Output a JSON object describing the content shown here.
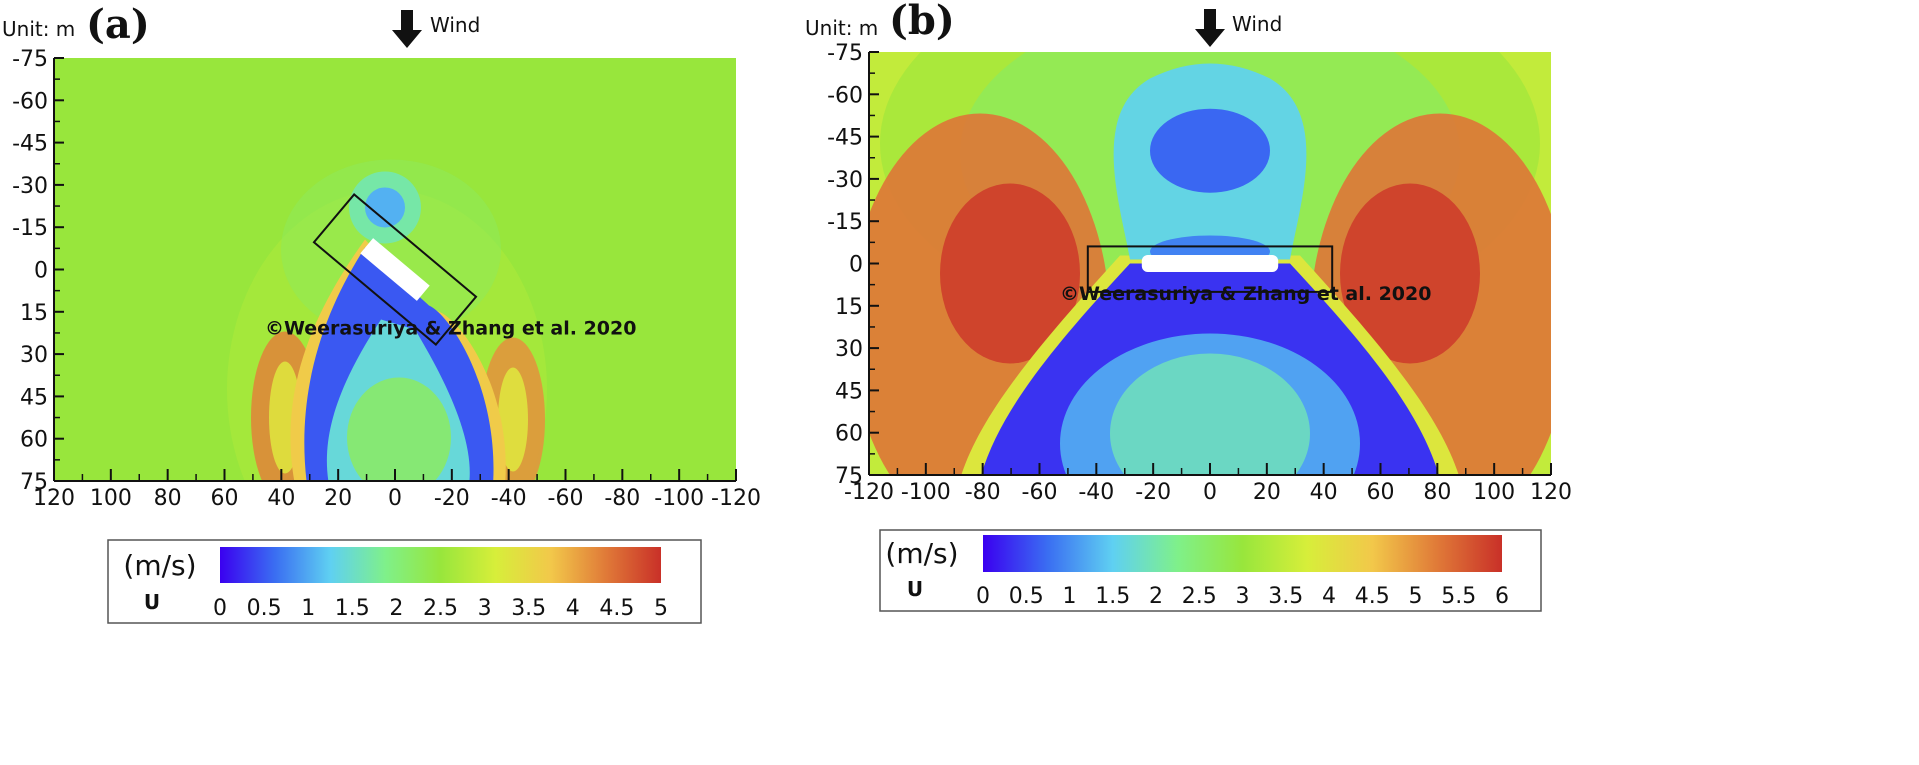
{
  "panels": [
    {
      "id": "a",
      "letter": "(a)",
      "unit_label": "Unit: m",
      "wind_label": "Wind",
      "watermark": "©Weerasuriya & Zhang et al. 2020",
      "chart_data": {
        "type": "heatmap",
        "field": "wind speed U (m/s)",
        "x_ticks": [
          "120",
          "100",
          "80",
          "60",
          "40",
          "20",
          "0",
          "-20",
          "-40",
          "-60",
          "-80",
          "-100",
          "-120"
        ],
        "y_ticks": [
          "-75",
          "-60",
          "-45",
          "-30",
          "-15",
          "0",
          "15",
          "30",
          "45",
          "60",
          "75"
        ],
        "xlim": [
          120,
          -120
        ],
        "ylim": [
          -75,
          75
        ],
        "y_inverted": true,
        "background_speed": 2.5,
        "structure": {
          "rotation_deg": 40,
          "center": [
            0,
            0
          ],
          "length": 26,
          "width": 7
        },
        "bounding_box": {
          "rotation_deg": 40,
          "center": [
            0,
            0
          ],
          "length": 56,
          "width": 22
        },
        "colorbar": {
          "title": "(m/s)",
          "variable": "U",
          "min": 0,
          "max": 5,
          "ticks": [
            "0",
            "0.5",
            "1",
            "1.5",
            "2",
            "2.5",
            "3",
            "3.5",
            "4",
            "4.5",
            "5"
          ]
        }
      }
    },
    {
      "id": "b",
      "letter": "(b)",
      "unit_label": "Unit: m",
      "wind_label": "Wind",
      "watermark": "©Weerasuriya & Zhang et al. 2020",
      "chart_data": {
        "type": "heatmap",
        "field": "wind speed U (m/s)",
        "x_ticks": [
          "-120",
          "-100",
          "-80",
          "-60",
          "-40",
          "-20",
          "0",
          "20",
          "40",
          "60",
          "80",
          "100",
          "120"
        ],
        "y_ticks": [
          "-75",
          "-60",
          "-45",
          "-30",
          "-15",
          "0",
          "15",
          "30",
          "45",
          "60",
          "75"
        ],
        "xlim": [
          -120,
          120
        ],
        "ylim": [
          -75,
          75
        ],
        "y_inverted": true,
        "background_speed": 3.5,
        "structure": {
          "rotation_deg": 0,
          "center": [
            0,
            0
          ],
          "length": 48,
          "width": 6
        },
        "bounding_box": {
          "rotation_deg": 0,
          "center": [
            0,
            2
          ],
          "length": 86,
          "width": 16
        },
        "colorbar": {
          "title": "(m/s)",
          "variable": "U",
          "min": 0,
          "max": 6,
          "ticks": [
            "0",
            "0.5",
            "1",
            "1.5",
            "2",
            "2.5",
            "3",
            "3.5",
            "4",
            "4.5",
            "5",
            "5.5",
            "6"
          ]
        }
      }
    }
  ],
  "colors": {
    "jet_stops": [
      "#3a00f0",
      "#3a6ef2",
      "#5fd0f2",
      "#7ff08a",
      "#98e63c",
      "#d7ee3a",
      "#f2c84a",
      "#e07a38",
      "#c93028"
    ],
    "frame": "#111111",
    "structure": "#ffffff"
  }
}
